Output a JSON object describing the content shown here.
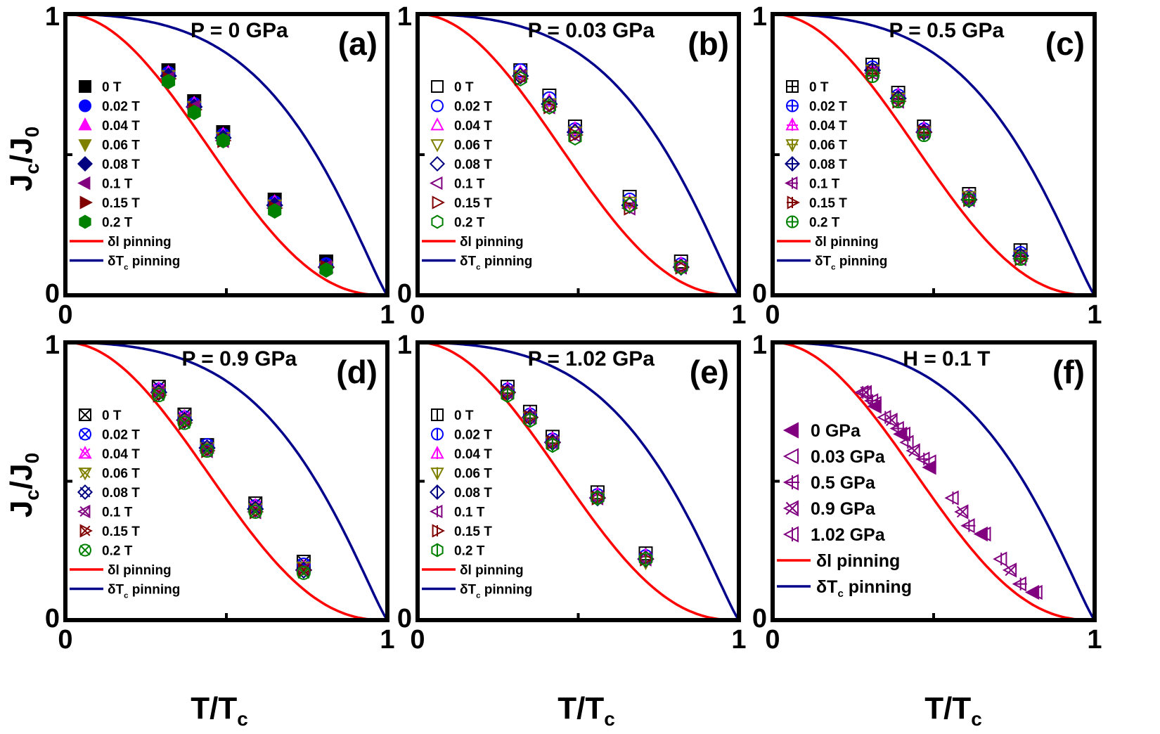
{
  "figure": {
    "ylabel_main": "J",
    "ylabel_sub1": "c",
    "ylabel_mid": "/J",
    "ylabel_sub2": "0",
    "xlabel_main": "T/T",
    "xlabel_sub": "c",
    "tick_0": "0",
    "tick_1": "1"
  },
  "chart_data": [
    {
      "id": "a",
      "type": "scatter",
      "panel_label": "(a)",
      "header": "P = 0 GPa",
      "xlim": [
        0,
        1
      ],
      "ylim": [
        0,
        1
      ],
      "xticks": [
        "0",
        "1"
      ],
      "yticks": [
        "0",
        "1"
      ],
      "x": [
        0.32,
        0.4,
        0.49,
        0.65,
        0.81
      ],
      "series": [
        {
          "name": "0 T",
          "marker": "square",
          "fill": true,
          "color": "#000000",
          "values": [
            0.8,
            0.69,
            0.58,
            0.34,
            0.12
          ]
        },
        {
          "name": "0.02 T",
          "marker": "circle",
          "fill": true,
          "color": "#0000ff",
          "values": [
            0.79,
            0.68,
            0.57,
            0.33,
            0.11
          ]
        },
        {
          "name": "0.04 T",
          "marker": "triangle-up",
          "fill": true,
          "color": "#ff00ff",
          "values": [
            0.79,
            0.68,
            0.57,
            0.33,
            0.1
          ]
        },
        {
          "name": "0.06 T",
          "marker": "triangle-down",
          "fill": true,
          "color": "#808000",
          "values": [
            0.78,
            0.67,
            0.56,
            0.32,
            0.1
          ]
        },
        {
          "name": "0.08 T",
          "marker": "diamond",
          "fill": true,
          "color": "#000080",
          "values": [
            0.78,
            0.67,
            0.56,
            0.32,
            0.1
          ]
        },
        {
          "name": "0.1 T",
          "marker": "triangle-left",
          "fill": true,
          "color": "#800080",
          "values": [
            0.77,
            0.67,
            0.55,
            0.31,
            0.1
          ]
        },
        {
          "name": "0.15 T",
          "marker": "triangle-right",
          "fill": true,
          "color": "#800000",
          "values": [
            0.77,
            0.66,
            0.55,
            0.31,
            0.1
          ]
        },
        {
          "name": "0.2 T",
          "marker": "hexagon",
          "fill": true,
          "color": "#008000",
          "values": [
            0.76,
            0.65,
            0.55,
            0.3,
            0.09
          ]
        }
      ],
      "lines": [
        {
          "name": "δl pinning",
          "label_main": "δl pinning",
          "label_sub": "",
          "color": "#ff0000",
          "formula": "(1-t^2)^(5/2)(1+t^2)^(-1/2)"
        },
        {
          "name": "δTc pinning",
          "label_main": "δT",
          "label_sub": "c",
          "label_tail": " pinning",
          "color": "#00008b",
          "formula": "(1-t^2)^(7/6)(1+t^2)^(5/6)"
        }
      ]
    },
    {
      "id": "b",
      "type": "scatter",
      "panel_label": "(b)",
      "header": "P = 0.03 GPa",
      "xlim": [
        0,
        1
      ],
      "ylim": [
        0,
        1
      ],
      "xticks": [
        "0",
        "1"
      ],
      "yticks": [
        "0",
        "1"
      ],
      "x": [
        0.32,
        0.41,
        0.49,
        0.66,
        0.82
      ],
      "series": [
        {
          "name": "0 T",
          "marker": "square",
          "fill": false,
          "color": "#000000",
          "values": [
            0.8,
            0.71,
            0.6,
            0.35,
            0.12
          ]
        },
        {
          "name": "0.02 T",
          "marker": "circle",
          "fill": false,
          "color": "#0000ff",
          "values": [
            0.8,
            0.7,
            0.59,
            0.34,
            0.11
          ]
        },
        {
          "name": "0.04 T",
          "marker": "triangle-up",
          "fill": false,
          "color": "#ff00ff",
          "values": [
            0.79,
            0.69,
            0.59,
            0.33,
            0.11
          ]
        },
        {
          "name": "0.06 T",
          "marker": "triangle-down",
          "fill": false,
          "color": "#808000",
          "values": [
            0.78,
            0.68,
            0.58,
            0.33,
            0.1
          ]
        },
        {
          "name": "0.08 T",
          "marker": "diamond",
          "fill": false,
          "color": "#000080",
          "values": [
            0.78,
            0.68,
            0.58,
            0.32,
            0.1
          ]
        },
        {
          "name": "0.1 T",
          "marker": "triangle-left",
          "fill": false,
          "color": "#800080",
          "values": [
            0.78,
            0.67,
            0.57,
            0.31,
            0.1
          ]
        },
        {
          "name": "0.15 T",
          "marker": "triangle-right",
          "fill": false,
          "color": "#800000",
          "values": [
            0.77,
            0.67,
            0.57,
            0.31,
            0.1
          ]
        },
        {
          "name": "0.2 T",
          "marker": "hexagon",
          "fill": false,
          "color": "#008000",
          "values": [
            0.77,
            0.67,
            0.56,
            0.32,
            0.1
          ]
        }
      ],
      "lines": [
        {
          "name": "δl pinning",
          "label_main": "δl pinning",
          "label_sub": "",
          "color": "#ff0000",
          "formula": "(1-t^2)^(5/2)(1+t^2)^(-1/2)"
        },
        {
          "name": "δTc pinning",
          "label_main": "δT",
          "label_sub": "c",
          "label_tail": " pinning",
          "color": "#00008b",
          "formula": "(1-t^2)^(7/6)(1+t^2)^(5/6)"
        }
      ]
    },
    {
      "id": "c",
      "type": "scatter",
      "panel_label": "(c)",
      "header": "P = 0.5 GPa",
      "xlim": [
        0,
        1
      ],
      "ylim": [
        0,
        1
      ],
      "xticks": [
        "0",
        "1"
      ],
      "yticks": [
        "0",
        "1"
      ],
      "x": [
        0.31,
        0.39,
        0.47,
        0.61,
        0.77
      ],
      "series": [
        {
          "name": "0 T",
          "marker": "square-plus",
          "fill": false,
          "color": "#000000",
          "values": [
            0.82,
            0.72,
            0.6,
            0.36,
            0.16
          ]
        },
        {
          "name": "0.02 T",
          "marker": "circle-plus",
          "fill": false,
          "color": "#0000ff",
          "values": [
            0.81,
            0.71,
            0.59,
            0.35,
            0.15
          ]
        },
        {
          "name": "0.04 T",
          "marker": "triangle-up-plus",
          "fill": false,
          "color": "#ff00ff",
          "values": [
            0.8,
            0.71,
            0.59,
            0.35,
            0.14
          ]
        },
        {
          "name": "0.06 T",
          "marker": "triangle-down-plus",
          "fill": false,
          "color": "#808000",
          "values": [
            0.8,
            0.7,
            0.58,
            0.35,
            0.14
          ]
        },
        {
          "name": "0.08 T",
          "marker": "diamond-plus",
          "fill": false,
          "color": "#000080",
          "values": [
            0.8,
            0.7,
            0.58,
            0.34,
            0.14
          ]
        },
        {
          "name": "0.1 T",
          "marker": "triangle-left-plus",
          "fill": false,
          "color": "#800080",
          "values": [
            0.79,
            0.69,
            0.58,
            0.34,
            0.13
          ]
        },
        {
          "name": "0.15 T",
          "marker": "triangle-right-plus",
          "fill": false,
          "color": "#800000",
          "values": [
            0.79,
            0.69,
            0.58,
            0.34,
            0.13
          ]
        },
        {
          "name": "0.2 T",
          "marker": "circle-plus",
          "fill": false,
          "color": "#008000",
          "values": [
            0.78,
            0.69,
            0.57,
            0.34,
            0.13
          ]
        }
      ],
      "lines": [
        {
          "name": "δl pinning",
          "label_main": "δl pinning",
          "label_sub": "",
          "color": "#ff0000",
          "formula": "(1-t^2)^(5/2)(1+t^2)^(-1/2)"
        },
        {
          "name": "δTc pinning",
          "label_main": "δT",
          "label_sub": "c",
          "label_tail": " pinning",
          "color": "#00008b",
          "formula": "(1-t^2)^(7/6)(1+t^2)^(5/6)"
        }
      ]
    },
    {
      "id": "d",
      "type": "scatter",
      "panel_label": "(d)",
      "header": "P = 0.9 GPa",
      "xlim": [
        0,
        1
      ],
      "ylim": [
        0,
        1
      ],
      "xticks": [
        "0",
        "1"
      ],
      "yticks": [
        "0",
        "1"
      ],
      "x": [
        0.29,
        0.37,
        0.44,
        0.59,
        0.74
      ],
      "series": [
        {
          "name": "0 T",
          "marker": "square-x",
          "fill": false,
          "color": "#000000",
          "values": [
            0.84,
            0.74,
            0.63,
            0.42,
            0.21
          ]
        },
        {
          "name": "0.02 T",
          "marker": "circle-x",
          "fill": false,
          "color": "#0000ff",
          "values": [
            0.83,
            0.73,
            0.63,
            0.41,
            0.2
          ]
        },
        {
          "name": "0.04 T",
          "marker": "triangle-up-x",
          "fill": false,
          "color": "#ff00ff",
          "values": [
            0.83,
            0.73,
            0.62,
            0.41,
            0.19
          ]
        },
        {
          "name": "0.06 T",
          "marker": "triangle-down-x",
          "fill": false,
          "color": "#808000",
          "values": [
            0.82,
            0.72,
            0.62,
            0.4,
            0.19
          ]
        },
        {
          "name": "0.08 T",
          "marker": "diamond-x",
          "fill": false,
          "color": "#000080",
          "values": [
            0.82,
            0.72,
            0.62,
            0.4,
            0.18
          ]
        },
        {
          "name": "0.1 T",
          "marker": "triangle-left-x",
          "fill": false,
          "color": "#800080",
          "values": [
            0.82,
            0.72,
            0.61,
            0.39,
            0.18
          ]
        },
        {
          "name": "0.15 T",
          "marker": "triangle-right-x",
          "fill": false,
          "color": "#800000",
          "values": [
            0.81,
            0.71,
            0.61,
            0.39,
            0.18
          ]
        },
        {
          "name": "0.2 T",
          "marker": "circle-x",
          "fill": false,
          "color": "#008000",
          "values": [
            0.81,
            0.71,
            0.61,
            0.39,
            0.17
          ]
        }
      ],
      "lines": [
        {
          "name": "δl pinning",
          "label_main": "δl pinning",
          "label_sub": "",
          "color": "#ff0000",
          "formula": "(1-t^2)^(5/2)(1+t^2)^(-1/2)"
        },
        {
          "name": "δTc pinning",
          "label_main": "δT",
          "label_sub": "c",
          "label_tail": " pinning",
          "color": "#00008b",
          "formula": "(1-t^2)^(7/6)(1+t^2)^(5/6)"
        }
      ]
    },
    {
      "id": "e",
      "type": "scatter",
      "panel_label": "(e)",
      "header": "P = 1.02 GPa",
      "xlim": [
        0,
        1
      ],
      "ylim": [
        0,
        1
      ],
      "xticks": [
        "0",
        "1"
      ],
      "yticks": [
        "0",
        "1"
      ],
      "x": [
        0.28,
        0.35,
        0.42,
        0.56,
        0.71
      ],
      "series": [
        {
          "name": "0 T",
          "marker": "square-vbar",
          "fill": false,
          "color": "#000000",
          "values": [
            0.84,
            0.75,
            0.66,
            0.46,
            0.24
          ]
        },
        {
          "name": "0.02 T",
          "marker": "circle-vbar",
          "fill": false,
          "color": "#0000ff",
          "values": [
            0.83,
            0.74,
            0.65,
            0.45,
            0.23
          ]
        },
        {
          "name": "0.04 T",
          "marker": "triangle-up-vbar",
          "fill": false,
          "color": "#ff00ff",
          "values": [
            0.83,
            0.74,
            0.65,
            0.45,
            0.23
          ]
        },
        {
          "name": "0.06 T",
          "marker": "triangle-down-vbar",
          "fill": false,
          "color": "#808000",
          "values": [
            0.82,
            0.73,
            0.64,
            0.44,
            0.21
          ]
        },
        {
          "name": "0.08 T",
          "marker": "diamond-vbar",
          "fill": false,
          "color": "#000080",
          "values": [
            0.82,
            0.73,
            0.64,
            0.44,
            0.22
          ]
        },
        {
          "name": "0.1 T",
          "marker": "triangle-left-vbar",
          "fill": false,
          "color": "#800080",
          "values": [
            0.82,
            0.73,
            0.64,
            0.44,
            0.22
          ]
        },
        {
          "name": "0.15 T",
          "marker": "triangle-right-vbar",
          "fill": false,
          "color": "#800000",
          "values": [
            0.82,
            0.73,
            0.64,
            0.44,
            0.22
          ]
        },
        {
          "name": "0.2 T",
          "marker": "hexagon-vbar",
          "fill": false,
          "color": "#008000",
          "values": [
            0.81,
            0.72,
            0.63,
            0.44,
            0.22
          ]
        }
      ],
      "lines": [
        {
          "name": "δl pinning",
          "label_main": "δl pinning",
          "label_sub": "",
          "color": "#ff0000",
          "formula": "(1-t^2)^(5/2)(1+t^2)^(-1/2)"
        },
        {
          "name": "δTc pinning",
          "label_main": "δT",
          "label_sub": "c",
          "label_tail": " pinning",
          "color": "#00008b",
          "formula": "(1-t^2)^(7/6)(1+t^2)^(5/6)"
        }
      ]
    },
    {
      "id": "f",
      "type": "scatter",
      "panel_label": "(f)",
      "header": "H = 0.1 T",
      "xlim": [
        0,
        1
      ],
      "ylim": [
        0,
        1
      ],
      "xticks": [
        "0",
        "1"
      ],
      "yticks": [
        "0",
        "1"
      ],
      "series": [
        {
          "name": "0 GPa",
          "marker": "triangle-left",
          "fill": true,
          "color": "#800080",
          "x": [
            0.32,
            0.4,
            0.49,
            0.65,
            0.81
          ],
          "values": [
            0.77,
            0.67,
            0.55,
            0.31,
            0.1
          ]
        },
        {
          "name": "0.03 GPa",
          "marker": "triangle-left",
          "fill": false,
          "color": "#800080",
          "x": [
            0.32,
            0.41,
            0.49,
            0.66,
            0.82
          ],
          "values": [
            0.78,
            0.67,
            0.57,
            0.31,
            0.1
          ]
        },
        {
          "name": "0.5 GPa",
          "marker": "triangle-left-plus",
          "fill": false,
          "color": "#800080",
          "x": [
            0.31,
            0.39,
            0.47,
            0.61,
            0.77
          ],
          "values": [
            0.79,
            0.69,
            0.58,
            0.34,
            0.13
          ]
        },
        {
          "name": "0.9 GPa",
          "marker": "triangle-left-x",
          "fill": false,
          "color": "#800080",
          "x": [
            0.29,
            0.37,
            0.44,
            0.59,
            0.74
          ],
          "values": [
            0.82,
            0.72,
            0.61,
            0.39,
            0.18
          ]
        },
        {
          "name": "1.02 GPa",
          "marker": "triangle-left-vbar",
          "fill": false,
          "color": "#800080",
          "x": [
            0.28,
            0.35,
            0.42,
            0.56,
            0.71
          ],
          "values": [
            0.82,
            0.73,
            0.64,
            0.44,
            0.22
          ]
        }
      ],
      "lines": [
        {
          "name": "δl pinning",
          "label_main": "δl pinning",
          "label_sub": "",
          "color": "#ff0000",
          "formula": "(1-t^2)^(5/2)(1+t^2)^(-1/2)"
        },
        {
          "name": "δTc pinning",
          "label_main": "δT",
          "label_sub": "c",
          "label_tail": " pinning",
          "color": "#00008b",
          "formula": "(1-t^2)^(7/6)(1+t^2)^(5/6)"
        }
      ]
    }
  ]
}
